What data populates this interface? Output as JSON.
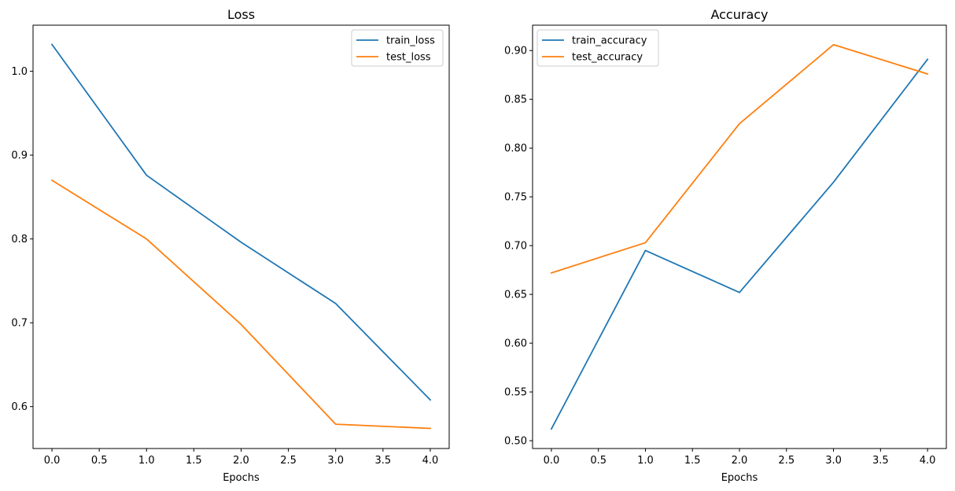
{
  "chart_data": [
    {
      "type": "line",
      "title": "Loss",
      "xlabel": "Epochs",
      "ylabel": "",
      "x": [
        0,
        1,
        2,
        3,
        4
      ],
      "xlim": [
        -0.2,
        4.2
      ],
      "ylim": [
        0.55,
        1.055
      ],
      "xticks": [
        "0.0",
        "0.5",
        "1.0",
        "1.5",
        "2.0",
        "2.5",
        "3.0",
        "3.5",
        "4.0"
      ],
      "yticks": [
        "0.6",
        "0.7",
        "0.8",
        "0.9",
        "1.0"
      ],
      "grid": false,
      "legend": "top-right",
      "series": [
        {
          "name": "train_loss",
          "color": "#1f77b4",
          "values": [
            1.032,
            0.876,
            0.796,
            0.723,
            0.608
          ]
        },
        {
          "name": "test_loss",
          "color": "#ff7f0e",
          "values": [
            0.87,
            0.8,
            0.698,
            0.579,
            0.574
          ]
        }
      ]
    },
    {
      "type": "line",
      "title": "Accuracy",
      "xlabel": "Epochs",
      "ylabel": "",
      "x": [
        0,
        1,
        2,
        3,
        4
      ],
      "xlim": [
        -0.2,
        4.2
      ],
      "ylim": [
        0.492,
        0.926
      ],
      "xticks": [
        "0.0",
        "0.5",
        "1.0",
        "1.5",
        "2.0",
        "2.5",
        "3.0",
        "3.5",
        "4.0"
      ],
      "yticks": [
        "0.50",
        "0.55",
        "0.60",
        "0.65",
        "0.70",
        "0.75",
        "0.80",
        "0.85",
        "0.90"
      ],
      "grid": false,
      "legend": "top-left",
      "series": [
        {
          "name": "train_accuracy",
          "color": "#1f77b4",
          "values": [
            0.512,
            0.695,
            0.652,
            0.765,
            0.891
          ]
        },
        {
          "name": "test_accuracy",
          "color": "#ff7f0e",
          "values": [
            0.672,
            0.703,
            0.825,
            0.906,
            0.876
          ]
        }
      ]
    }
  ]
}
